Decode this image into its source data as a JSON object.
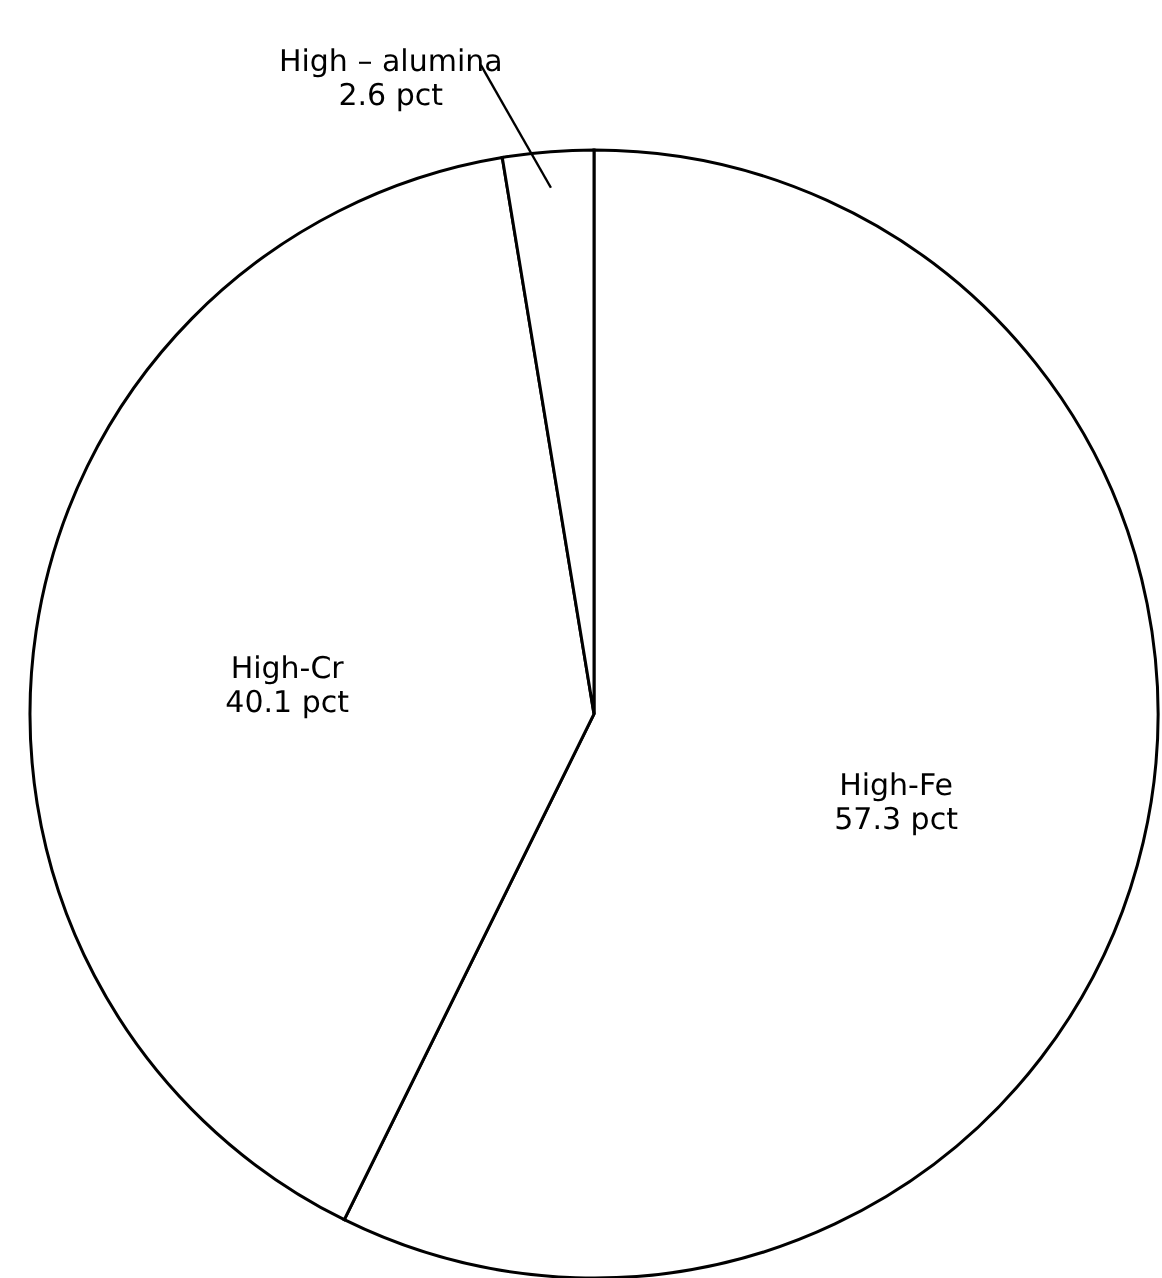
{
  "chart_data": {
    "type": "pie",
    "categories": [
      "High-Fe",
      "High-Cr",
      "High – alumina"
    ],
    "values": [
      57.3,
      40.1,
      2.6
    ],
    "value_labels": [
      "57.3 pct",
      "40.1 pct",
      "2.6 pct"
    ],
    "colors": [
      "#ffffff",
      "#ffffff",
      "#ffffff"
    ]
  }
}
